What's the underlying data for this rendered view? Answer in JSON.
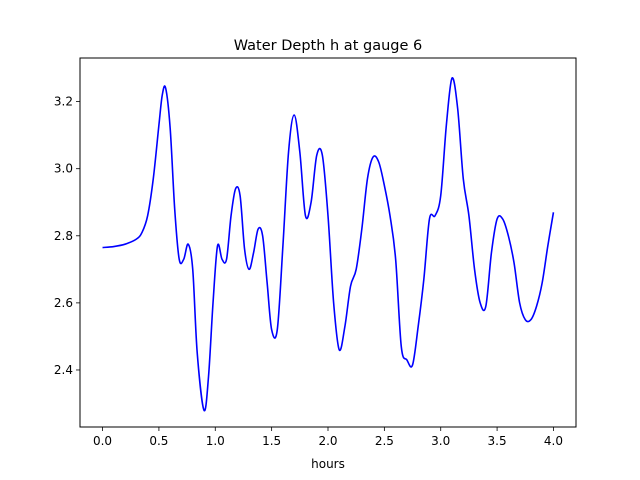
{
  "chart_data": {
    "type": "line",
    "title": "Water Depth h at gauge 6",
    "xlabel": "hours",
    "ylabel": "",
    "xlim": [
      -0.2,
      4.2
    ],
    "ylim": [
      2.23,
      3.33
    ],
    "xticks": [
      0.0,
      0.5,
      1.0,
      1.5,
      2.0,
      2.5,
      3.0,
      3.5,
      4.0
    ],
    "xtick_labels": [
      "0.0",
      "0.5",
      "1.0",
      "1.5",
      "2.0",
      "2.5",
      "3.0",
      "3.5",
      "4.0"
    ],
    "yticks": [
      2.4,
      2.6,
      2.8,
      3.0,
      3.2
    ],
    "ytick_labels": [
      "2.4",
      "2.6",
      "2.8",
      "3.0",
      "3.2"
    ],
    "grid": false,
    "series": [
      {
        "color": "#0000ff",
        "x": [
          0.0,
          0.1,
          0.2,
          0.3,
          0.35,
          0.4,
          0.45,
          0.5,
          0.53,
          0.56,
          0.6,
          0.64,
          0.68,
          0.72,
          0.76,
          0.8,
          0.84,
          0.9,
          0.94,
          0.98,
          1.02,
          1.06,
          1.1,
          1.14,
          1.18,
          1.22,
          1.26,
          1.3,
          1.34,
          1.38,
          1.42,
          1.46,
          1.5,
          1.55,
          1.6,
          1.65,
          1.7,
          1.75,
          1.8,
          1.85,
          1.9,
          1.95,
          2.0,
          2.05,
          2.1,
          2.15,
          2.2,
          2.25,
          2.3,
          2.35,
          2.4,
          2.45,
          2.5,
          2.55,
          2.6,
          2.65,
          2.7,
          2.75,
          2.8,
          2.85,
          2.9,
          2.95,
          3.0,
          3.05,
          3.1,
          3.15,
          3.2,
          3.25,
          3.3,
          3.35,
          3.4,
          3.45,
          3.5,
          3.55,
          3.6,
          3.65,
          3.7,
          3.75,
          3.8,
          3.85,
          3.9,
          3.95,
          4.0
        ],
        "y": [
          2.765,
          2.768,
          2.775,
          2.79,
          2.81,
          2.86,
          2.97,
          3.13,
          3.22,
          3.24,
          3.12,
          2.88,
          2.73,
          2.73,
          2.775,
          2.7,
          2.45,
          2.28,
          2.38,
          2.6,
          2.77,
          2.73,
          2.73,
          2.86,
          2.94,
          2.92,
          2.76,
          2.7,
          2.75,
          2.82,
          2.8,
          2.66,
          2.52,
          2.52,
          2.77,
          3.05,
          3.16,
          3.05,
          2.86,
          2.9,
          3.04,
          3.04,
          2.86,
          2.6,
          2.46,
          2.53,
          2.65,
          2.7,
          2.82,
          2.97,
          3.035,
          3.02,
          2.95,
          2.86,
          2.73,
          2.47,
          2.43,
          2.415,
          2.53,
          2.67,
          2.85,
          2.86,
          2.92,
          3.13,
          3.27,
          3.18,
          2.97,
          2.86,
          2.7,
          2.6,
          2.59,
          2.75,
          2.85,
          2.85,
          2.8,
          2.72,
          2.6,
          2.55,
          2.55,
          2.59,
          2.66,
          2.77,
          2.87
        ]
      }
    ]
  }
}
